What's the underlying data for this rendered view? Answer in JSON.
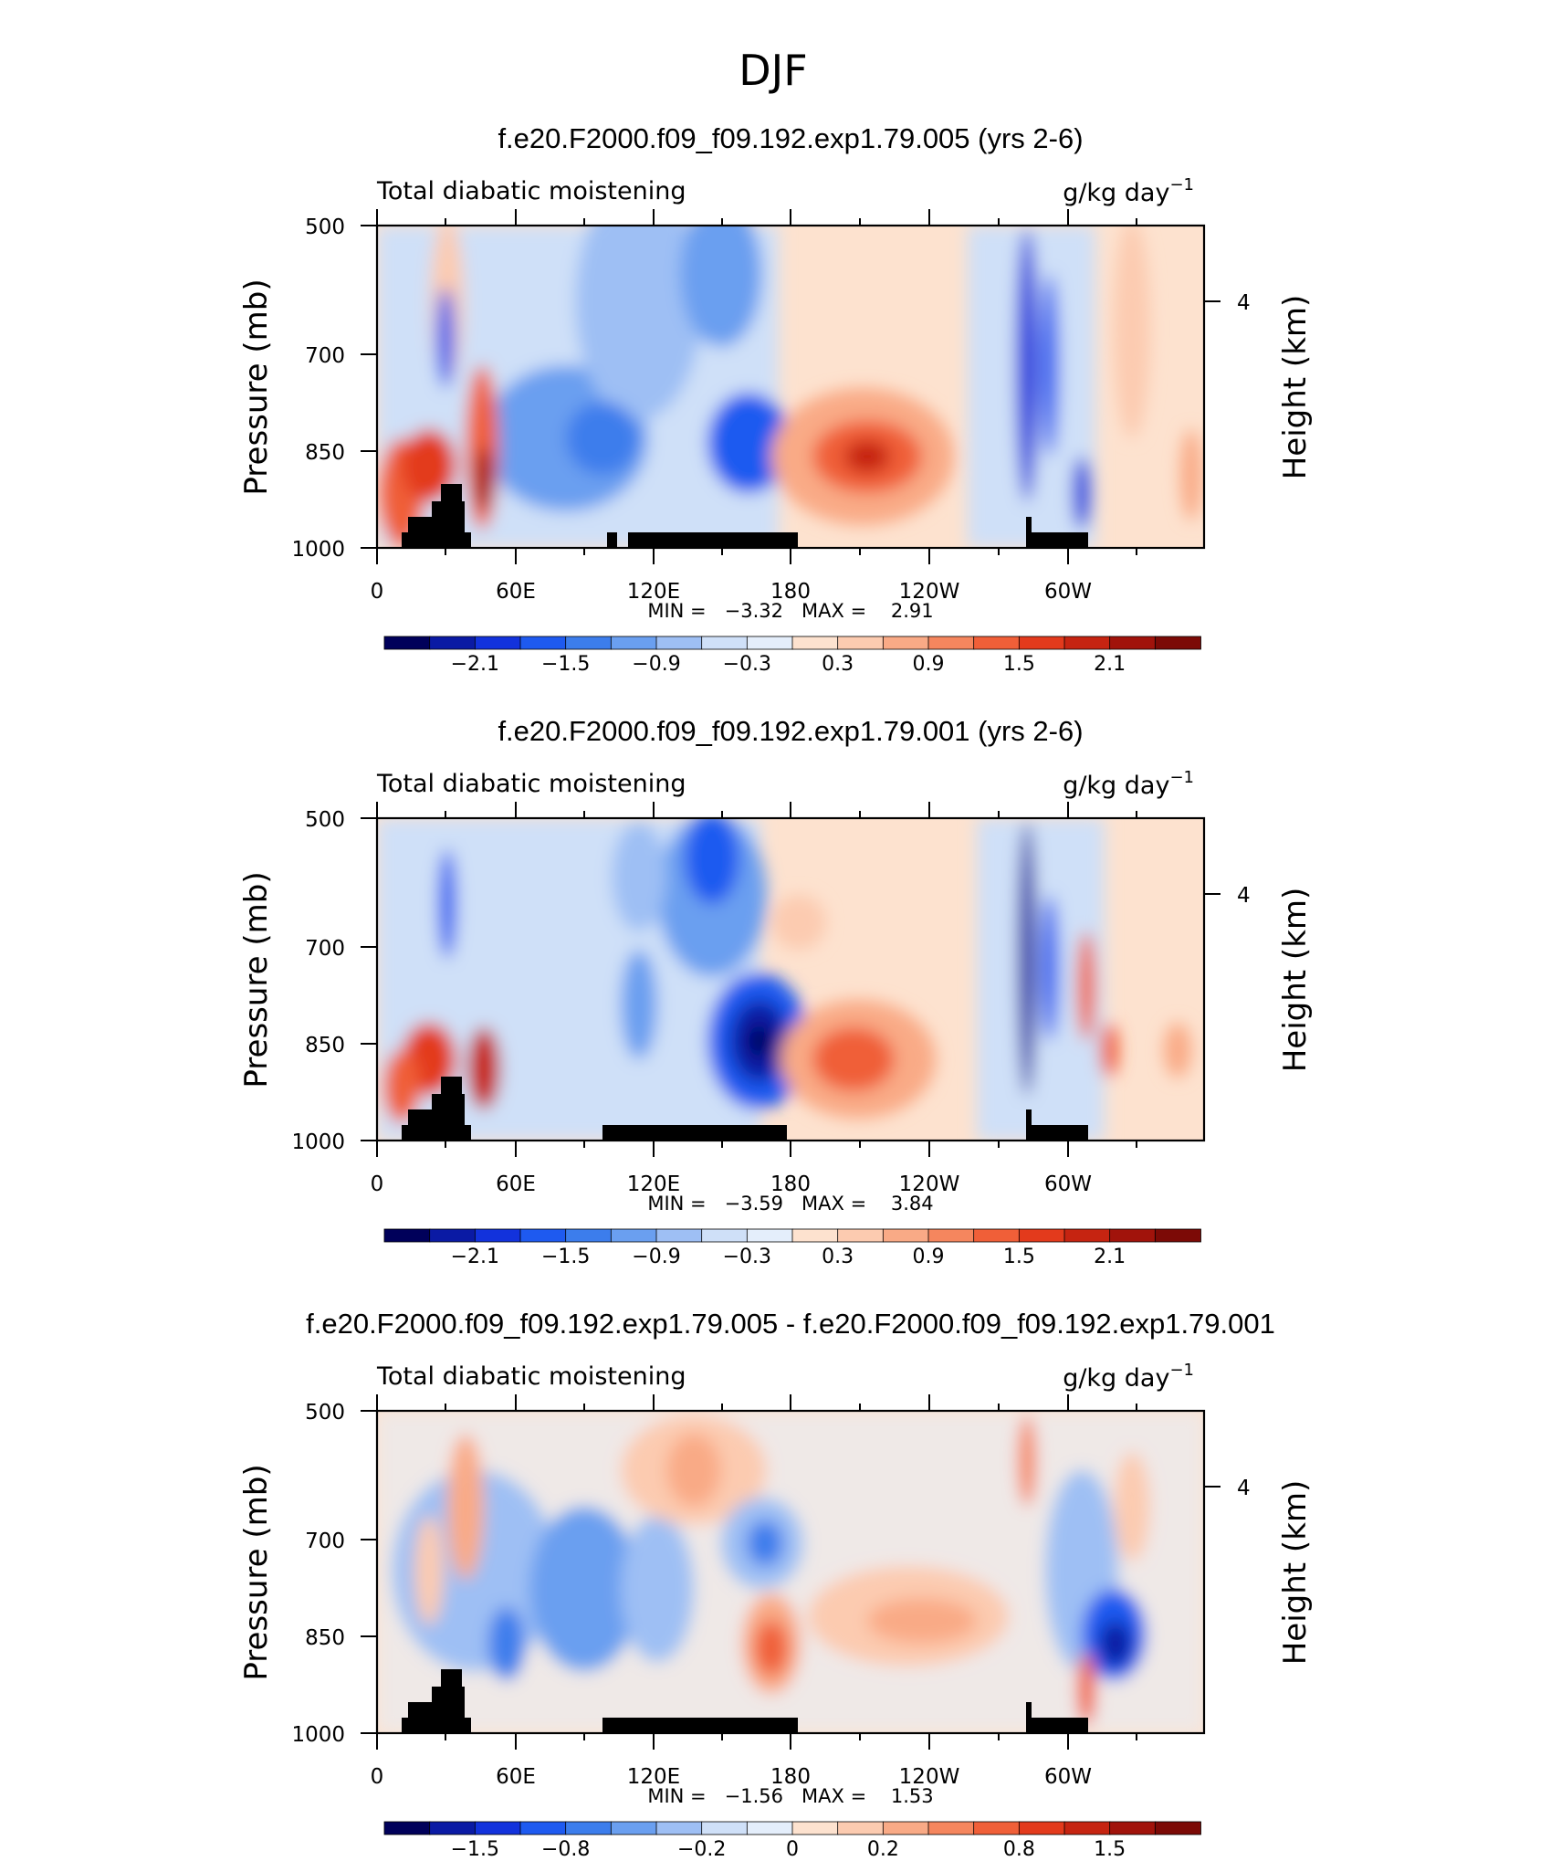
{
  "figure_title": "DJF",
  "colors": {
    "neg": [
      "#00005a",
      "#0a1aa4",
      "#1232dc",
      "#1e5af0",
      "#3c7dec",
      "#6a9ff0",
      "#9ebff4",
      "#cfe0f8",
      "#e4eefb"
    ],
    "pos": [
      "#fde2cf",
      "#fccbb0",
      "#f9aa86",
      "#f5865e",
      "#f05f38",
      "#e33a1c",
      "#c62411",
      "#a1130b",
      "#7c0a06"
    ],
    "land": "#000000"
  },
  "chart_data": [
    {
      "type": "contour",
      "title": "f.e20.F2000.f09_f09.192.exp1.79.005 (yrs 2-6)",
      "left_string": "Total diabatic moistening",
      "units": "g/kg day",
      "units_exp": "−1",
      "ylabel": "Pressure (mb)",
      "ylabel_right": "Height (km)",
      "yticks": [
        "500",
        "700",
        "850",
        "1000"
      ],
      "right_tick": "4",
      "xticks": [
        "0",
        "60E",
        "120E",
        "180",
        "120W",
        "60W"
      ],
      "stats": "MIN =   −3.32   MAX =    2.91",
      "colorbar_labels": [
        "−2.1",
        "−1.5",
        "−0.9",
        "−0.3",
        "0.3",
        "0.9",
        "1.5",
        "2.1"
      ],
      "min": -3.32,
      "max": 2.91
    },
    {
      "type": "contour",
      "title": "f.e20.F2000.f09_f09.192.exp1.79.001 (yrs 2-6)",
      "left_string": "Total diabatic moistening",
      "units": "g/kg day",
      "units_exp": "−1",
      "ylabel": "Pressure (mb)",
      "ylabel_right": "Height (km)",
      "yticks": [
        "500",
        "700",
        "850",
        "1000"
      ],
      "right_tick": "4",
      "xticks": [
        "0",
        "60E",
        "120E",
        "180",
        "120W",
        "60W"
      ],
      "stats": "MIN =   −3.59   MAX =    3.84",
      "colorbar_labels": [
        "−2.1",
        "−1.5",
        "−0.9",
        "−0.3",
        "0.3",
        "0.9",
        "1.5",
        "2.1"
      ],
      "min": -3.59,
      "max": 3.84
    },
    {
      "type": "contour",
      "title": "f.e20.F2000.f09_f09.192.exp1.79.005 - f.e20.F2000.f09_f09.192.exp1.79.001",
      "left_string": "Total diabatic moistening",
      "units": "g/kg day",
      "units_exp": "−1",
      "ylabel": "Pressure (mb)",
      "ylabel_right": "Height (km)",
      "yticks": [
        "500",
        "700",
        "850",
        "1000"
      ],
      "right_tick": "4",
      "xticks": [
        "0",
        "60E",
        "120E",
        "180",
        "120W",
        "60W"
      ],
      "stats": "MIN =   −1.56   MAX =    1.53",
      "colorbar_labels": [
        "−1.5",
        "−0.8",
        "−0.2",
        "0",
        "0.2",
        "0.8",
        "1.5"
      ],
      "min": -1.56,
      "max": 1.53
    }
  ]
}
